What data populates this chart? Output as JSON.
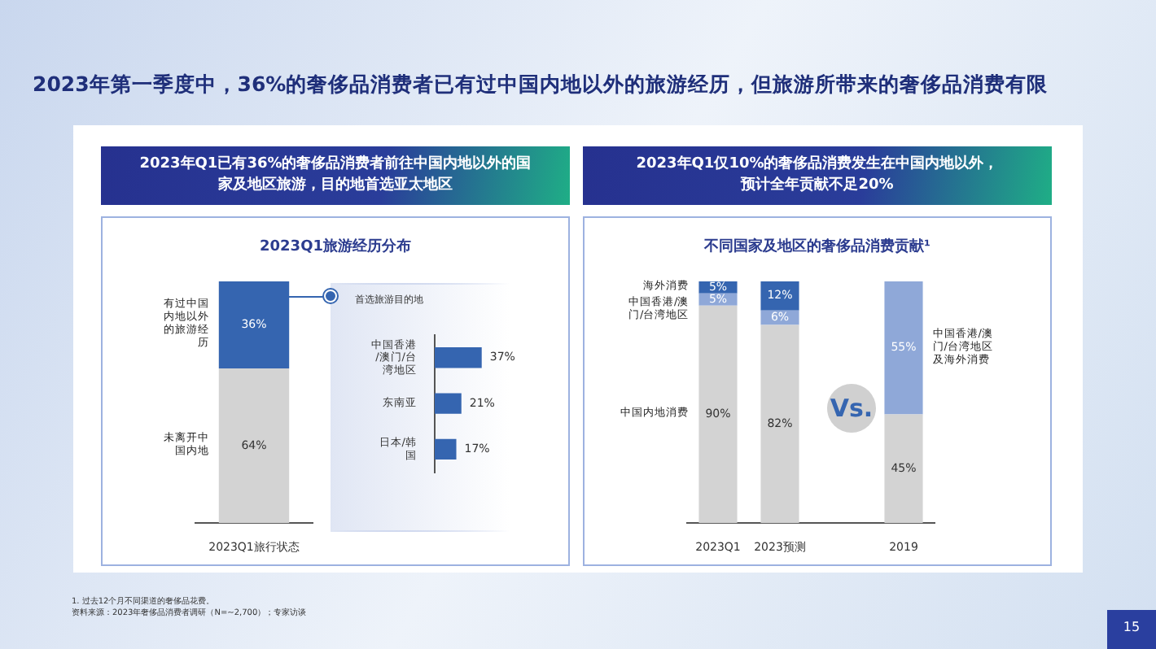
{
  "chart_data": [
    {
      "type": "bar",
      "stacked": true,
      "title": "2023Q1旅游经历分布",
      "subtitle": "2023年Q1已有36%的奢侈品消费者前往中国内地以外的国家及地区旅游，目的地首选亚太地区",
      "categories": [
        "2023Q1旅行状态"
      ],
      "legend": false,
      "series": [
        {
          "name": "未离开中国内地",
          "color": "#d3d3d3",
          "values": [
            64
          ],
          "value_labels": [
            "64%"
          ]
        },
        {
          "name": "有过中国内地以外的旅游经历",
          "color": "#3565b0",
          "values": [
            36
          ],
          "value_labels": [
            "36%"
          ]
        }
      ],
      "annotations": [
        "2023年第一季度中，36%的奢侈品消费者已有过中国内地以外的旅游经历，但旅游所带来的奢侈品消费有限",
        "1. 过去12个月不同渠道的奢侈品花费。",
        "资料来源：2023年奢侈品消费者调研（N=~2,700）；专家访谈",
        "15"
      ]
    },
    {
      "type": "bar",
      "orientation": "horizontal",
      "title": "首选旅游目的地",
      "categories": [
        "中国香港/澳门/台湾地区",
        "东南亚",
        "日本/韩国"
      ],
      "values": [
        37,
        21,
        17
      ],
      "value_labels": [
        "37%",
        "21%",
        "17%"
      ],
      "color": "#3565b0",
      "legend": false
    },
    {
      "type": "bar",
      "stacked": true,
      "title": "不同国家及地区的奢侈品消费贡献¹",
      "subtitle": "2023年Q1仅10%的奢侈品消费发生在中国内地以外，预计全年贡献不足20%",
      "categories": [
        "2023Q1",
        "2023预测",
        null,
        "2019"
      ],
      "legend": false,
      "series": [
        {
          "name": "中国内地消费",
          "color": "#d3d3d3",
          "values": [
            90,
            82,
            null,
            45
          ],
          "value_labels": [
            "90%",
            "82%",
            null,
            "45%"
          ]
        },
        {
          "name": "中国香港/澳门/台湾地区",
          "color": "#8fa8d8",
          "values": [
            5,
            6,
            null,
            null
          ],
          "value_labels": [
            "5%",
            "6%",
            null,
            null
          ]
        },
        {
          "name": "海外消费",
          "color": "#3565b0",
          "values": [
            5,
            12,
            null,
            null
          ],
          "value_labels": [
            "5%",
            "12%",
            null,
            null
          ]
        },
        {
          "name": "中国香港/澳门/台湾地区及海外消费",
          "color": "#8fa8d8",
          "values": [
            null,
            null,
            null,
            55
          ],
          "value_labels": [
            null,
            null,
            null,
            "55%"
          ]
        }
      ],
      "annotations": [
        "Vs."
      ]
    }
  ]
}
